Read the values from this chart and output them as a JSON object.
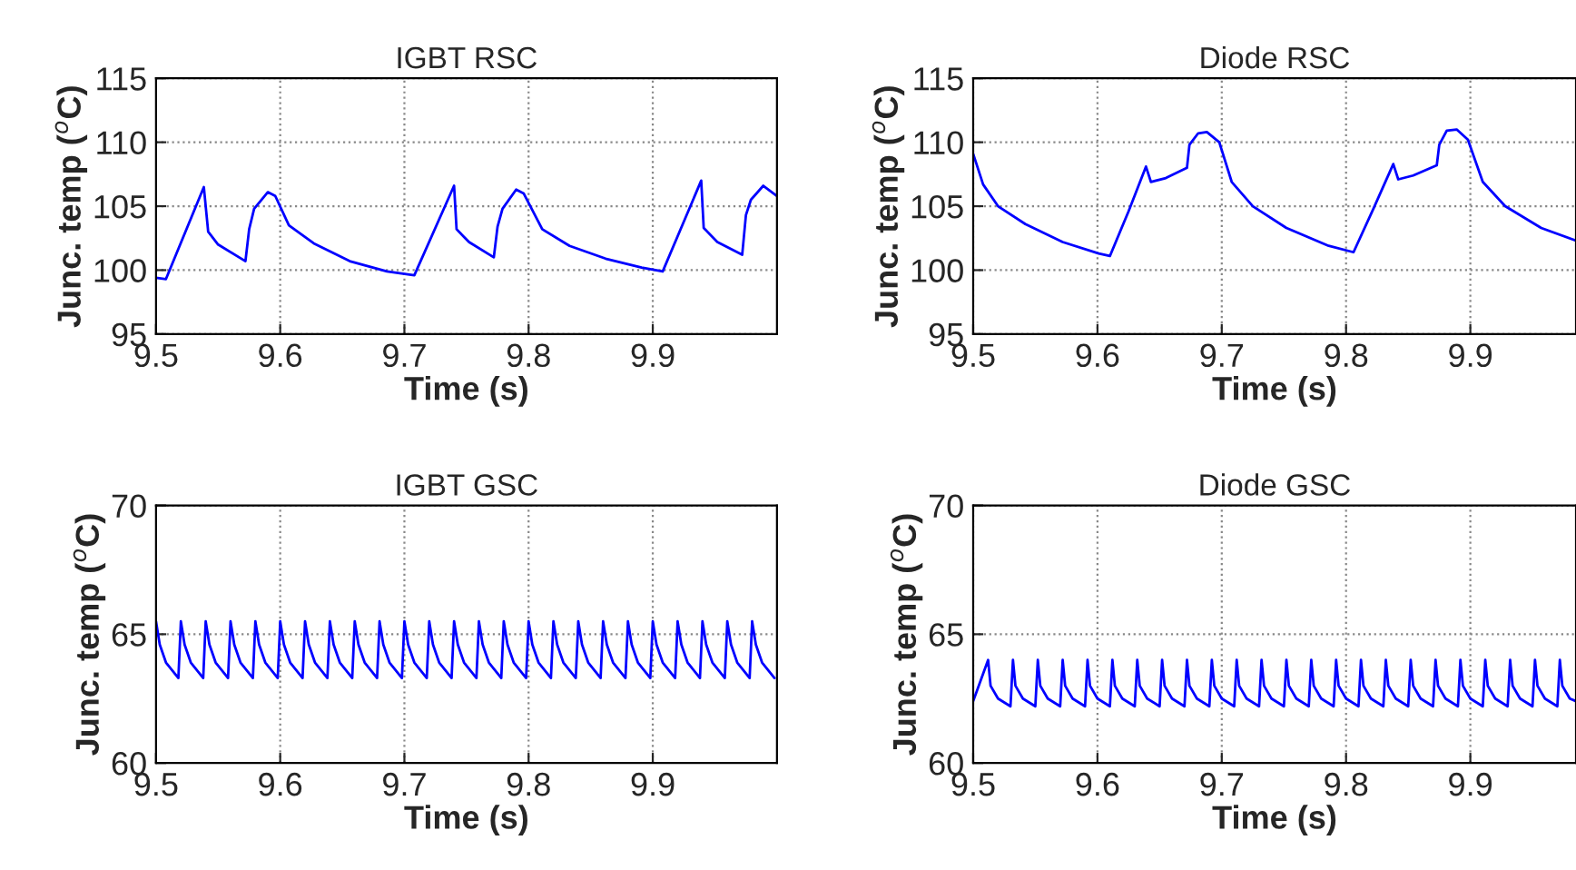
{
  "chart_data": [
    {
      "type": "line",
      "title": "IGBT RSC",
      "xlabel": "Time (s)",
      "ylabel": "Junc. temp ($^{o}$C)",
      "xlim": [
        9.5,
        10.0
      ],
      "xticks": [
        9.5,
        9.6,
        9.7,
        9.8,
        9.9
      ],
      "ylim": [
        95,
        115
      ],
      "yticks": [
        95,
        100,
        105,
        110,
        115
      ],
      "grid": true,
      "series": [
        {
          "color": "#0000ff",
          "x": [
            9.5,
            9.508,
            9.5385,
            9.542,
            9.55,
            9.572,
            9.575,
            9.579,
            9.59,
            9.596,
            9.607,
            9.627,
            9.656,
            9.686,
            9.708,
            9.74,
            9.742,
            9.752,
            9.772,
            9.775,
            9.779,
            9.79,
            9.796,
            9.811,
            9.833,
            9.862,
            9.891,
            9.908,
            9.939,
            9.941,
            9.952,
            9.972,
            9.975,
            9.979,
            9.989,
            10.0
          ],
          "values": [
            99.4,
            99.3,
            106.5,
            103.0,
            102.0,
            100.7,
            103.2,
            104.8,
            106.1,
            105.8,
            103.5,
            102.1,
            100.7,
            99.9,
            99.6,
            106.6,
            103.2,
            102.2,
            101.0,
            103.4,
            104.8,
            106.3,
            106.0,
            103.2,
            101.9,
            100.9,
            100.2,
            99.9,
            107.0,
            103.3,
            102.2,
            101.2,
            104.3,
            105.5,
            106.6,
            105.8
          ]
        }
      ]
    },
    {
      "type": "line",
      "title": "Diode RSC",
      "xlabel": "Time (s)",
      "ylabel": "Junc. temp ($^{o}$C)",
      "xlim": [
        9.5,
        9.985
      ],
      "xticks": [
        9.5,
        9.6,
        9.7,
        9.8,
        9.9
      ],
      "ylim": [
        95,
        115
      ],
      "yticks": [
        95,
        100,
        105,
        110,
        115
      ],
      "grid": true,
      "series": [
        {
          "color": "#0000ff",
          "x": [
            9.5,
            9.508,
            9.52,
            9.542,
            9.572,
            9.601,
            9.61,
            9.625,
            9.639,
            9.643,
            9.655,
            9.672,
            9.674,
            9.681,
            9.688,
            9.698,
            9.708,
            9.725,
            9.752,
            9.786,
            9.806,
            9.822,
            9.838,
            9.842,
            9.854,
            9.873,
            9.875,
            9.881,
            9.889,
            9.898,
            9.91,
            9.928,
            9.957,
            9.985
          ],
          "values": [
            109.1,
            106.7,
            105.0,
            103.6,
            102.2,
            101.3,
            101.1,
            104.6,
            108.1,
            106.9,
            107.2,
            108.0,
            109.8,
            110.7,
            110.8,
            110.0,
            106.9,
            105.0,
            103.3,
            101.9,
            101.4,
            104.8,
            108.3,
            107.1,
            107.4,
            108.2,
            109.8,
            110.9,
            111.0,
            110.2,
            106.9,
            105.0,
            103.3,
            102.3
          ]
        }
      ]
    },
    {
      "type": "line",
      "title": "IGBT GSC",
      "xlabel": "Time (s)",
      "ylabel": "Junc. temp ($^{o}$C)",
      "xlim": [
        9.5,
        10.0
      ],
      "xticks": [
        9.5,
        9.6,
        9.7,
        9.8,
        9.9
      ],
      "ylim": [
        60,
        70
      ],
      "yticks": [
        60,
        65,
        70
      ],
      "grid": true,
      "series": [
        {
          "color": "#0000ff",
          "x": [
            9.5,
            9.503,
            9.508,
            9.518,
            9.52,
            9.523,
            9.528,
            9.538,
            9.54,
            9.543,
            9.548,
            9.558,
            9.56,
            9.563,
            9.568,
            9.578,
            9.58,
            9.583,
            9.588,
            9.598,
            9.6,
            9.603,
            9.608,
            9.618,
            9.62,
            9.623,
            9.628,
            9.638,
            9.64,
            9.643,
            9.648,
            9.658,
            9.66,
            9.663,
            9.668,
            9.678,
            9.68,
            9.683,
            9.688,
            9.698,
            9.7,
            9.703,
            9.708,
            9.718,
            9.72,
            9.723,
            9.728,
            9.738,
            9.74,
            9.743,
            9.748,
            9.758,
            9.76,
            9.763,
            9.768,
            9.778,
            9.78,
            9.783,
            9.788,
            9.798,
            9.8,
            9.803,
            9.808,
            9.818,
            9.82,
            9.823,
            9.828,
            9.838,
            9.84,
            9.843,
            9.848,
            9.858,
            9.86,
            9.863,
            9.868,
            9.878,
            9.88,
            9.883,
            9.888,
            9.898,
            9.9,
            9.903,
            9.908,
            9.918,
            9.92,
            9.923,
            9.928,
            9.938,
            9.94,
            9.943,
            9.948,
            9.958,
            9.96,
            9.963,
            9.968,
            9.978,
            9.98,
            9.983,
            9.988,
            9.998
          ],
          "values": [
            65.5,
            64.6,
            63.9,
            63.3,
            65.5,
            64.6,
            63.9,
            63.3,
            65.5,
            64.6,
            63.9,
            63.3,
            65.5,
            64.6,
            63.9,
            63.3,
            65.5,
            64.6,
            63.9,
            63.3,
            65.5,
            64.6,
            63.9,
            63.3,
            65.5,
            64.6,
            63.9,
            63.3,
            65.5,
            64.6,
            63.9,
            63.3,
            65.5,
            64.6,
            63.9,
            63.3,
            65.5,
            64.6,
            63.9,
            63.3,
            65.5,
            64.6,
            63.9,
            63.3,
            65.5,
            64.6,
            63.9,
            63.3,
            65.5,
            64.6,
            63.9,
            63.3,
            65.5,
            64.6,
            63.9,
            63.3,
            65.5,
            64.6,
            63.9,
            63.3,
            65.5,
            64.6,
            63.9,
            63.3,
            65.5,
            64.6,
            63.9,
            63.3,
            65.5,
            64.6,
            63.9,
            63.3,
            65.5,
            64.6,
            63.9,
            63.3,
            65.5,
            64.6,
            63.9,
            63.3,
            65.5,
            64.6,
            63.9,
            63.3,
            65.5,
            64.6,
            63.9,
            63.3,
            65.5,
            64.6,
            63.9,
            63.3,
            65.5,
            64.6,
            63.9,
            63.3,
            65.5,
            64.6,
            63.9,
            63.3
          ]
        }
      ]
    },
    {
      "type": "line",
      "title": "Diode GSC",
      "xlabel": "Time (s)",
      "ylabel": "Junc. temp ($^{o}$C)",
      "xlim": [
        9.5,
        9.985
      ],
      "xticks": [
        9.5,
        9.6,
        9.7,
        9.8,
        9.9
      ],
      "ylim": [
        60,
        70
      ],
      "yticks": [
        60,
        65,
        70
      ],
      "grid": true,
      "series": [
        {
          "color": "#0000ff",
          "x": [
            9.5,
            9.512,
            9.514,
            9.52,
            9.53,
            9.532,
            9.534,
            9.54,
            9.55,
            9.552,
            9.554,
            9.56,
            9.57,
            9.572,
            9.574,
            9.58,
            9.59,
            9.592,
            9.594,
            9.6,
            9.61,
            9.612,
            9.614,
            9.62,
            9.63,
            9.632,
            9.634,
            9.64,
            9.65,
            9.652,
            9.654,
            9.66,
            9.67,
            9.672,
            9.674,
            9.68,
            9.69,
            9.692,
            9.694,
            9.7,
            9.71,
            9.712,
            9.714,
            9.72,
            9.73,
            9.732,
            9.734,
            9.74,
            9.75,
            9.752,
            9.754,
            9.76,
            9.77,
            9.772,
            9.774,
            9.78,
            9.79,
            9.792,
            9.794,
            9.8,
            9.81,
            9.812,
            9.814,
            9.82,
            9.83,
            9.832,
            9.834,
            9.84,
            9.85,
            9.852,
            9.854,
            9.86,
            9.87,
            9.872,
            9.874,
            9.88,
            9.89,
            9.892,
            9.894,
            9.9,
            9.91,
            9.912,
            9.914,
            9.92,
            9.93,
            9.932,
            9.934,
            9.94,
            9.95,
            9.952,
            9.954,
            9.96,
            9.97,
            9.972,
            9.974,
            9.98,
            9.985
          ],
          "values": [
            62.4,
            64.0,
            63.0,
            62.5,
            62.2,
            64.0,
            63.0,
            62.5,
            62.2,
            64.0,
            63.0,
            62.5,
            62.2,
            64.0,
            63.0,
            62.5,
            62.2,
            64.0,
            63.0,
            62.5,
            62.2,
            64.0,
            63.0,
            62.5,
            62.2,
            64.0,
            63.0,
            62.5,
            62.2,
            64.0,
            63.0,
            62.5,
            62.2,
            64.0,
            63.0,
            62.5,
            62.2,
            64.0,
            63.0,
            62.5,
            62.2,
            64.0,
            63.0,
            62.5,
            62.2,
            64.0,
            63.0,
            62.5,
            62.2,
            64.0,
            63.0,
            62.5,
            62.2,
            64.0,
            63.0,
            62.5,
            62.2,
            64.0,
            63.0,
            62.5,
            62.2,
            64.0,
            63.0,
            62.5,
            62.2,
            64.0,
            63.0,
            62.5,
            62.2,
            64.0,
            63.0,
            62.5,
            62.2,
            64.0,
            63.0,
            62.5,
            62.2,
            64.0,
            63.0,
            62.5,
            62.2,
            64.0,
            63.0,
            62.5,
            62.2,
            64.0,
            63.0,
            62.5,
            62.2,
            64.0,
            63.0,
            62.5,
            62.2,
            64.0,
            63.0,
            62.5,
            62.4
          ]
        }
      ]
    }
  ]
}
